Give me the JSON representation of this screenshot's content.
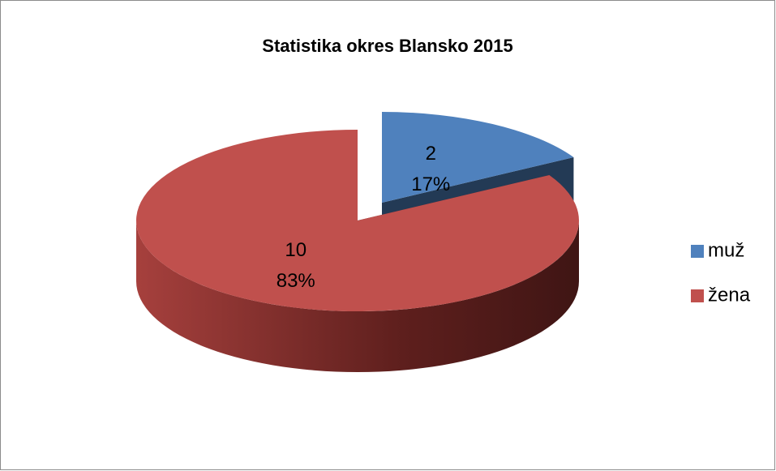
{
  "chart_data": {
    "type": "pie",
    "title": "Statistika okres Blansko 2015",
    "categories": [
      "muž",
      "žena"
    ],
    "values": [
      2,
      10
    ],
    "percentages": [
      17,
      83
    ],
    "percentage_labels": [
      "17%",
      "83%"
    ],
    "colors": [
      "#4f81bd",
      "#c0504d"
    ],
    "exploded": [
      true,
      false
    ],
    "legend": "right"
  }
}
